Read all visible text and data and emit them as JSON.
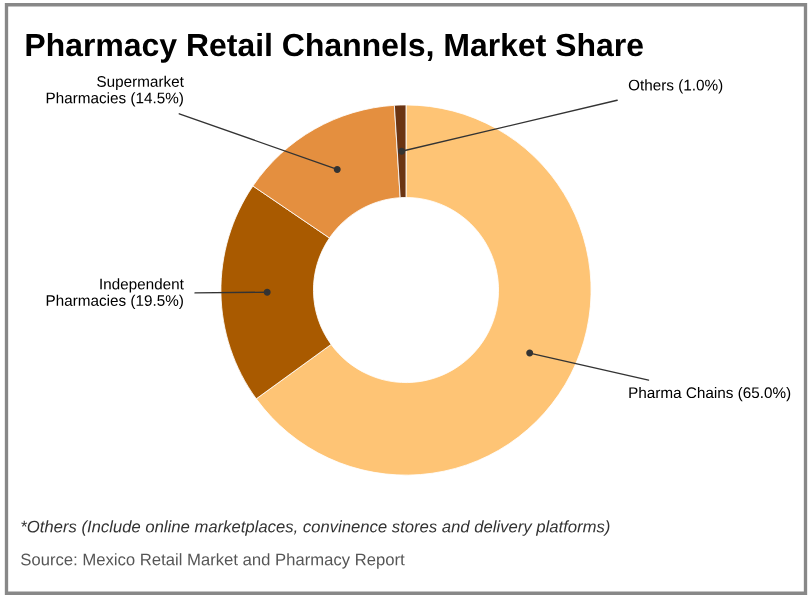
{
  "chart_data": {
    "type": "donut",
    "title": "Pharmacy Retail Channels, Market Share",
    "categories": [
      "Pharma Chains",
      "Independent\nPharmacies",
      "Supermarket\nPharmacies",
      "Others"
    ],
    "values": [
      65.0,
      19.5,
      14.5,
      1.0
    ],
    "value_labels": [
      "(65.0%)",
      "(19.5%)",
      "(14.5%)",
      "(1.0%)"
    ],
    "colors": [
      "#fec475",
      "#a95a00",
      "#e48f3f",
      "#6b3412"
    ],
    "annotations": [
      "*Others (Include online marketplaces, convinence stores and delivery platforms)",
      "Source: Mexico Retail Market and Pharmacy Report"
    ],
    "legend": false
  }
}
